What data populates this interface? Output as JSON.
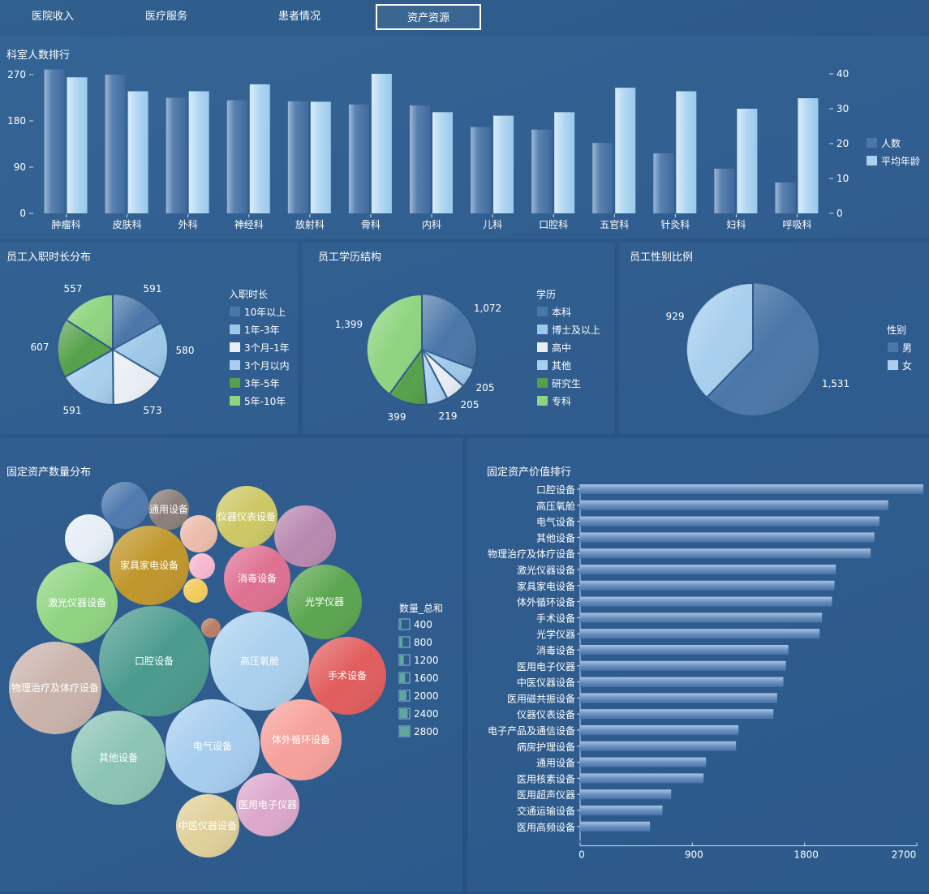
{
  "tabs": [
    {
      "label": "医院收入",
      "active": false
    },
    {
      "label": "医疗服务",
      "active": false
    },
    {
      "label": "患者情况",
      "active": false
    },
    {
      "label": "资产资源",
      "active": true
    }
  ],
  "panels": {
    "dept_title": "科室人数排行",
    "tenure_title": "员工入职时长分布",
    "edu_title": "员工学历结构",
    "gender_title": "员工性别比例",
    "asset_count_title": "固定资产数量分布",
    "asset_value_title": "固定资产价值排行"
  },
  "chart_data": [
    {
      "id": "dept",
      "type": "bar",
      "title": "科室人数排行",
      "categories": [
        "肿瘤科",
        "皮肤科",
        "外科",
        "神经科",
        "放射科",
        "骨科",
        "内科",
        "儿科",
        "口腔科",
        "五官科",
        "针灸科",
        "妇科",
        "呼吸科"
      ],
      "series": [
        {
          "name": "人数",
          "axis": "left",
          "values": [
            280,
            270,
            225,
            220,
            218,
            212,
            210,
            168,
            163,
            137,
            117,
            87,
            60
          ]
        },
        {
          "name": "平均年龄",
          "axis": "right",
          "values": [
            39,
            35,
            35,
            37,
            32,
            40,
            29,
            28,
            29,
            36,
            35,
            30,
            33
          ]
        }
      ],
      "ylim_left": [
        0,
        270
      ],
      "yticks_left": [
        0,
        90,
        180,
        270
      ],
      "ylim_right": [
        0,
        40
      ],
      "yticks_right": [
        0,
        10,
        20,
        30,
        40
      ],
      "legend": "right"
    },
    {
      "id": "tenure",
      "type": "pie",
      "title": "员工入职时长分布",
      "legend_title": "入职时长",
      "slices": [
        {
          "label": "10年以上",
          "value": 591,
          "color": "#4a76a8"
        },
        {
          "label": "1年-3年",
          "value": 580,
          "color": "#9ec8e8"
        },
        {
          "label": "3个月-1年",
          "value": 573,
          "color": "#e8eef4"
        },
        {
          "label": "3个月以内",
          "value": 591,
          "color": "#a8cfee"
        },
        {
          "label": "3年-5年",
          "value": 607,
          "color": "#55a04a"
        },
        {
          "label": "5年-10年",
          "value": 557,
          "color": "#8fd480"
        }
      ],
      "legend": "right"
    },
    {
      "id": "edu",
      "type": "pie",
      "title": "员工学历结构",
      "legend_title": "学历",
      "slices": [
        {
          "label": "本科",
          "value": 1072,
          "color": "#4a76a8"
        },
        {
          "label": "博士及以上",
          "value": 205,
          "color": "#9ec8e8"
        },
        {
          "label": "高中",
          "value": 205,
          "color": "#e8eef4"
        },
        {
          "label": "其他",
          "value": 219,
          "color": "#a8cfee"
        },
        {
          "label": "研究生",
          "value": 399,
          "color": "#55a04a"
        },
        {
          "label": "专科",
          "value": 1399,
          "color": "#8fd480"
        }
      ],
      "legend": "right"
    },
    {
      "id": "gender",
      "type": "pie",
      "title": "员工性别比例",
      "legend_title": "性别",
      "slices": [
        {
          "label": "男",
          "value": 1531,
          "color": "#4a76a8"
        },
        {
          "label": "女",
          "value": 929,
          "color": "#a8cfee"
        }
      ],
      "legend": "right"
    },
    {
      "id": "asset_count",
      "type": "bubble",
      "title": "固定资产数量分布",
      "legend_title": "数量_总和",
      "legend_values": [
        400,
        800,
        1200,
        1600,
        2000,
        2400,
        2800
      ],
      "bubbles": [
        {
          "label": "口腔设备",
          "color": "#4a9a8e"
        },
        {
          "label": "高压氧舱",
          "color": "#a9d0ee"
        },
        {
          "label": "物理治疗及体疗设备",
          "color": "#c9b3ab"
        },
        {
          "label": "其他设备",
          "color": "#8cc4b4"
        },
        {
          "label": "电气设备",
          "color": "#a6cdee"
        },
        {
          "label": "激光仪器设备",
          "color": "#8fd480"
        },
        {
          "label": "家具家电设备",
          "color": "#c0962a"
        },
        {
          "label": "手术设备",
          "color": "#e25c5c"
        },
        {
          "label": "体外循环设备",
          "color": "#f6a09a"
        },
        {
          "label": "光学仪器",
          "color": "#5aa54e"
        },
        {
          "label": "消毒设备",
          "color": "#de7090"
        },
        {
          "label": "医用电子仪器",
          "color": "#dca8cc"
        },
        {
          "label": "中医仪器设备",
          "color": "#e0d09a"
        },
        {
          "label": "仪器仪表设备",
          "color": "#cdc864"
        },
        {
          "label": "通用设备",
          "color": "#8a7e78"
        },
        {
          "label": "",
          "color": "#b888b0"
        },
        {
          "label": "",
          "color": "#4e7aae"
        },
        {
          "label": "",
          "color": "#e6eef6"
        },
        {
          "label": "",
          "color": "#ecbcaa"
        },
        {
          "label": "",
          "color": "#f6b8d0"
        },
        {
          "label": "",
          "color": "#f4cc5c"
        },
        {
          "label": "",
          "color": "#b87e66"
        }
      ]
    },
    {
      "id": "asset_value",
      "type": "bar",
      "orientation": "horizontal",
      "title": "固定资产价值排行",
      "categories": [
        "口腔设备",
        "高压氧舱",
        "电气设备",
        "其他设备",
        "物理治疗及体疗设备",
        "激光仪器设备",
        "家具家电设备",
        "体外循环设备",
        "手术设备",
        "光学仪器",
        "消毒设备",
        "医用电子仪器",
        "中医仪器设备",
        "医用磁共振设备",
        "仪器仪表设备",
        "电子产品及通信设备",
        "病房护理设备",
        "通用设备",
        "医用核素设备",
        "医用超声仪器",
        "交通运输设备",
        "医用高频设备"
      ],
      "values": [
        2780,
        2470,
        2400,
        2360,
        2330,
        2050,
        2040,
        2020,
        1940,
        1920,
        1670,
        1650,
        1630,
        1580,
        1550,
        1270,
        1250,
        1010,
        990,
        730,
        660,
        560
      ],
      "xlim": [
        0,
        2700
      ],
      "xticks": [
        0,
        900,
        1800,
        2700
      ]
    }
  ]
}
